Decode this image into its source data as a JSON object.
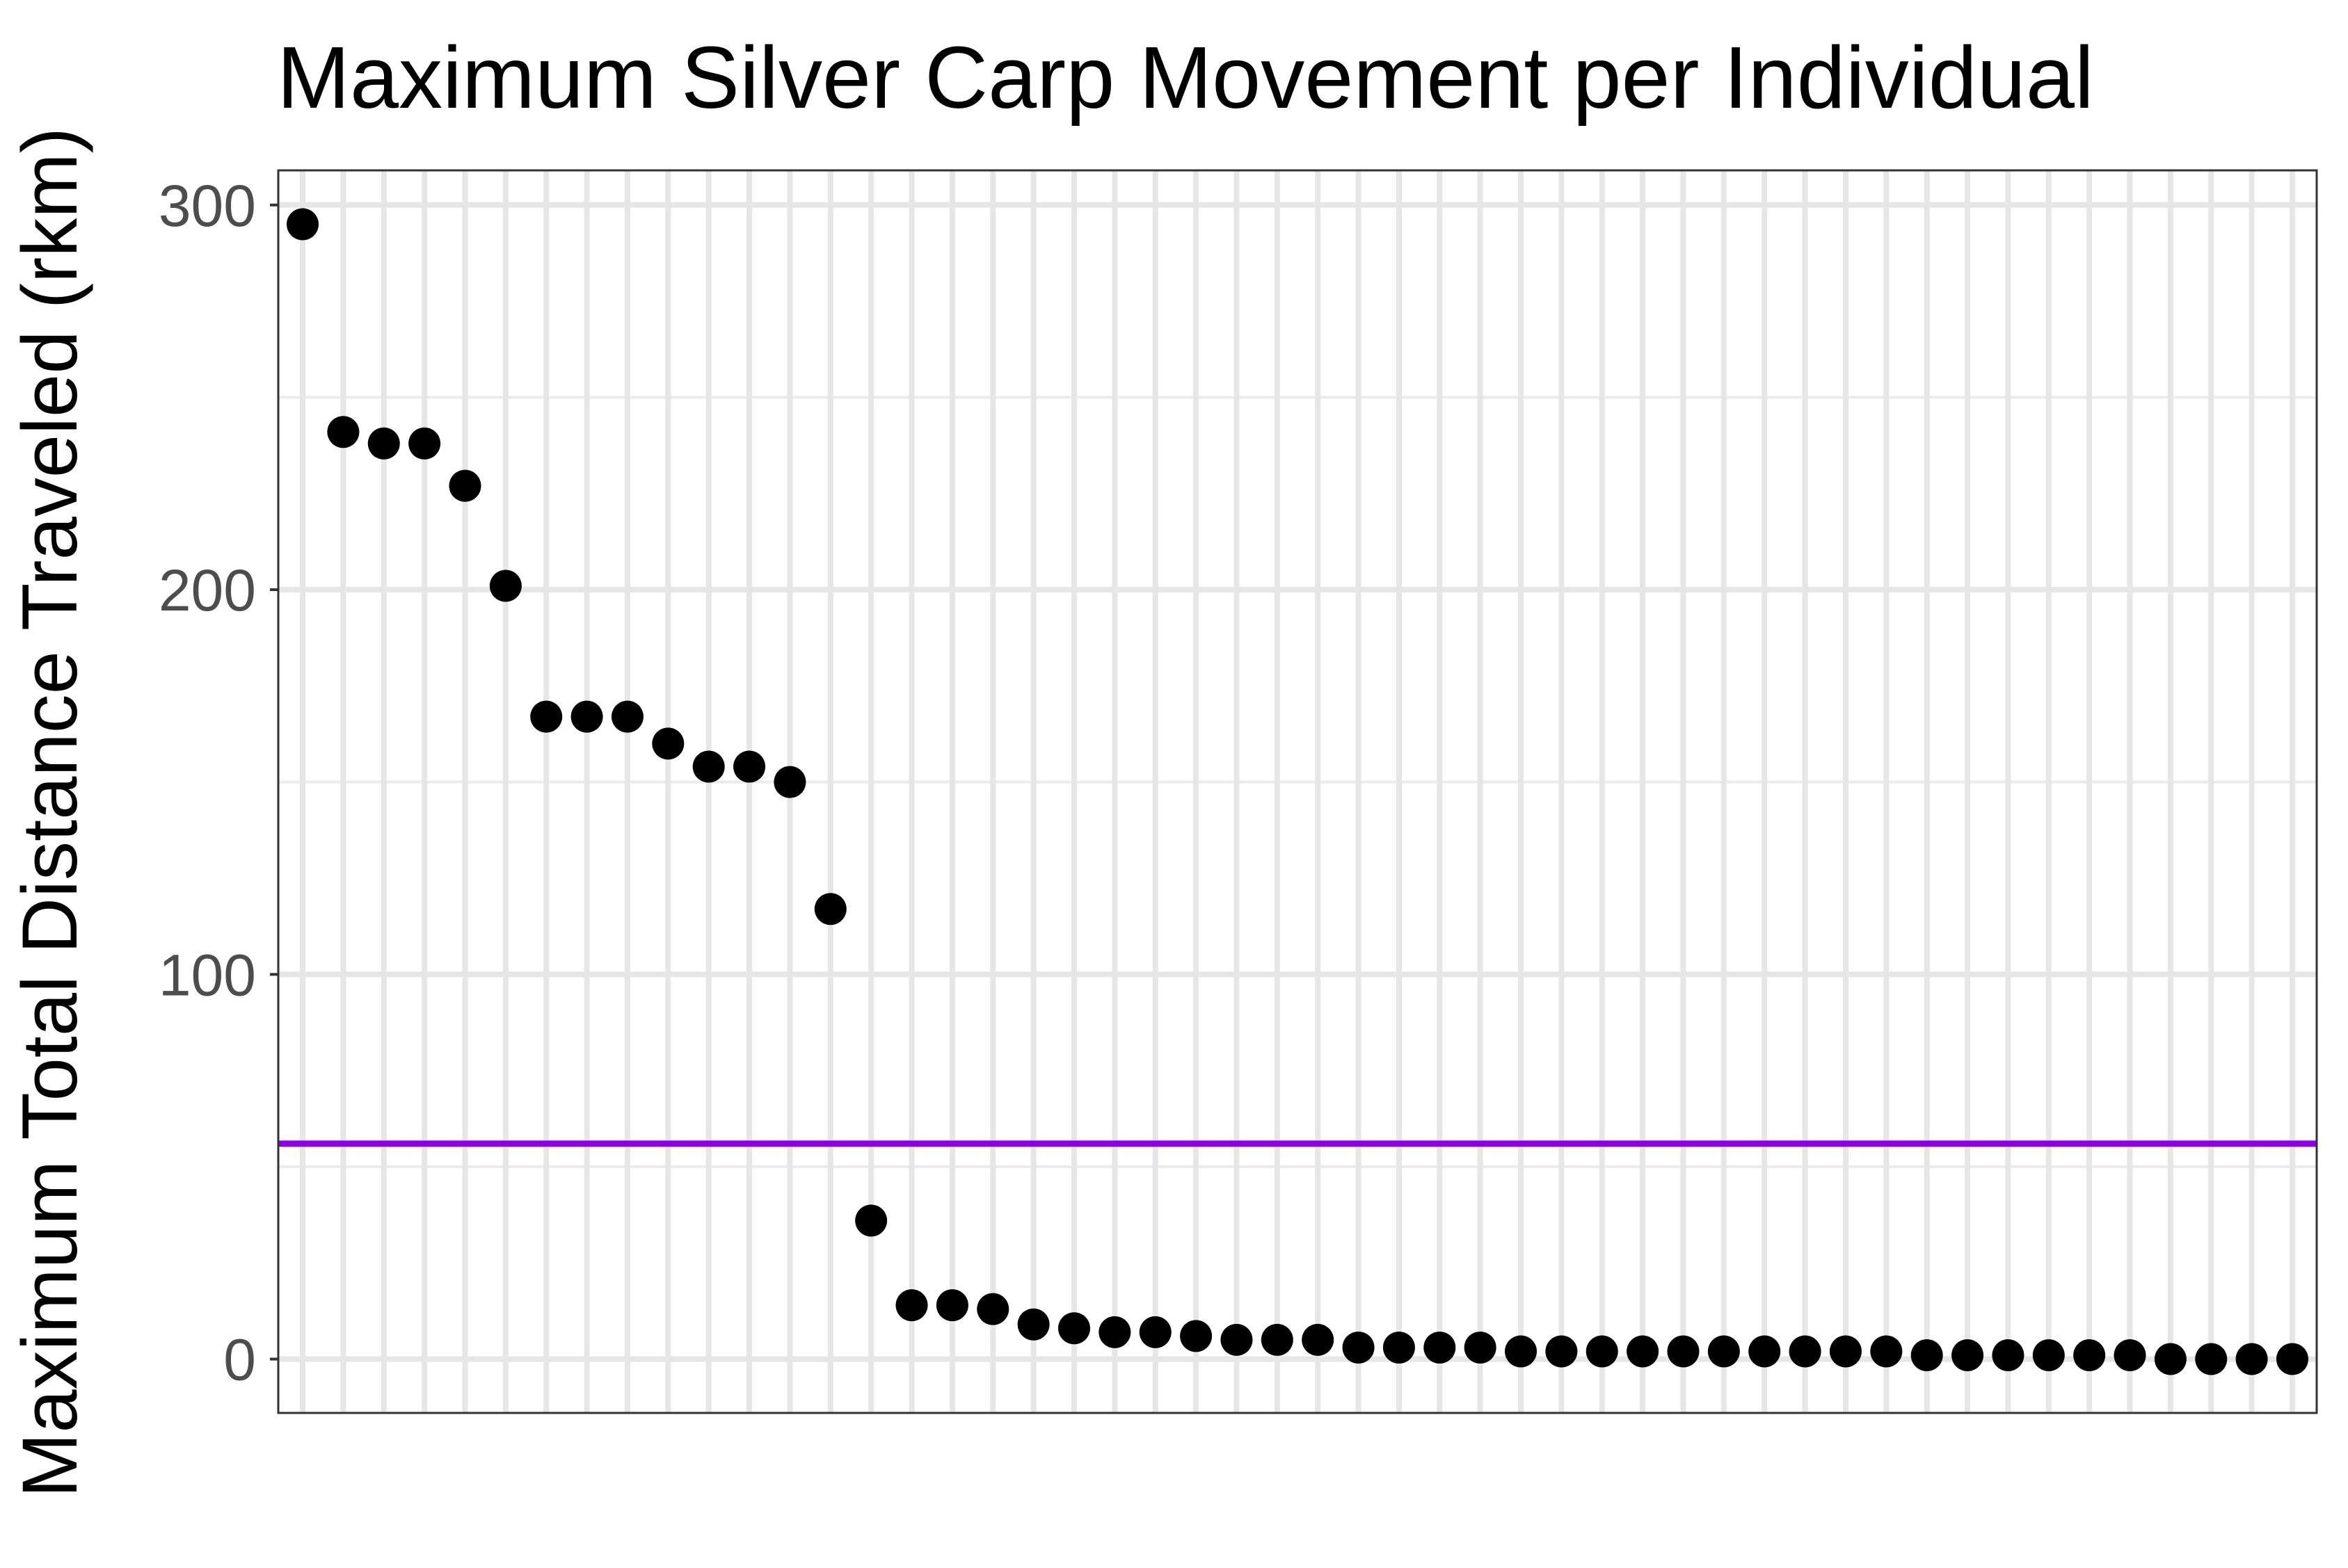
{
  "chart_data": {
    "type": "scatter",
    "title": "Maximum Silver Carp Movement per Individual",
    "xlabel": "",
    "ylabel": "Maximum Total Distance Traveled (rkm)",
    "x_tick_labels_shown": false,
    "ylim": [
      -14,
      309
    ],
    "yticks": [
      0,
      100,
      200,
      300
    ],
    "y_tick_labels": [
      "0",
      "100",
      "200",
      "300"
    ],
    "grid": true,
    "legend": "none",
    "reference_line": {
      "orientation": "horizontal",
      "y": 56,
      "color": "#8B00E6"
    },
    "point_color": "#000000",
    "series": [
      {
        "values": [
          295,
          241,
          238,
          238,
          227,
          201,
          167,
          167,
          167,
          160,
          154,
          154,
          150,
          117,
          36,
          14,
          14,
          13,
          9,
          8,
          7,
          7,
          6,
          5,
          5,
          5,
          3,
          3,
          3,
          3,
          2,
          2,
          2,
          2,
          2,
          2,
          2,
          2,
          2,
          2,
          1,
          1,
          1,
          1,
          1,
          1,
          0,
          0,
          0,
          0
        ]
      }
    ]
  }
}
